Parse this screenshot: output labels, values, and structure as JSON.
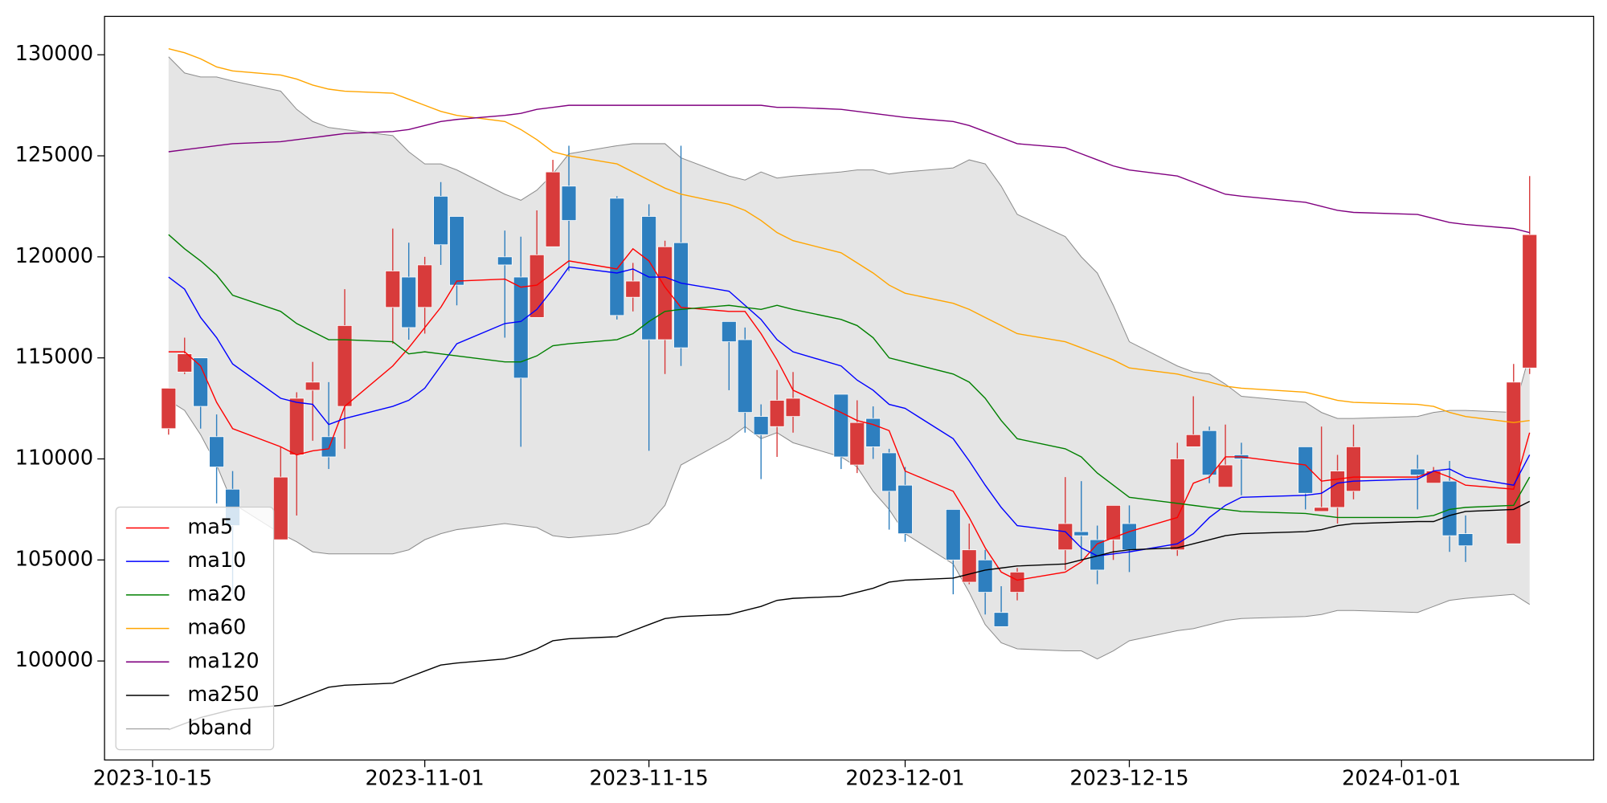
{
  "chart_data": {
    "type": "candlestick",
    "x": [
      "2023-10-16",
      "2023-10-17",
      "2023-10-18",
      "2023-10-19",
      "2023-10-20",
      "2023-10-23",
      "2023-10-24",
      "2023-10-25",
      "2023-10-26",
      "2023-10-27",
      "2023-10-30",
      "2023-10-31",
      "2023-11-01",
      "2023-11-02",
      "2023-11-03",
      "2023-11-06",
      "2023-11-07",
      "2023-11-08",
      "2023-11-09",
      "2023-11-10",
      "2023-11-13",
      "2023-11-14",
      "2023-11-15",
      "2023-11-16",
      "2023-11-17",
      "2023-11-20",
      "2023-11-21",
      "2023-11-22",
      "2023-11-23",
      "2023-11-24",
      "2023-11-27",
      "2023-11-28",
      "2023-11-29",
      "2023-11-30",
      "2023-12-01",
      "2023-12-04",
      "2023-12-05",
      "2023-12-06",
      "2023-12-07",
      "2023-12-08",
      "2023-12-11",
      "2023-12-12",
      "2023-12-13",
      "2023-12-14",
      "2023-12-15",
      "2023-12-18",
      "2023-12-19",
      "2023-12-20",
      "2023-12-21",
      "2023-12-22",
      "2023-12-26",
      "2023-12-27",
      "2023-12-28",
      "2023-12-29",
      "2024-01-02",
      "2024-01-03",
      "2024-01-04",
      "2024-01-05",
      "2024-01-08",
      "2024-01-09"
    ],
    "open": [
      111500,
      114300,
      115000,
      111100,
      108500,
      106000,
      110200,
      113400,
      111100,
      112600,
      117500,
      119000,
      117500,
      123000,
      122000,
      120000,
      119000,
      117000,
      120500,
      123500,
      122900,
      118000,
      122000,
      115900,
      120700,
      116800,
      115900,
      112100,
      111600,
      112100,
      113200,
      109700,
      112000,
      110300,
      108700,
      107500,
      103900,
      105000,
      102400,
      103400,
      105500,
      106400,
      106000,
      106000,
      106800,
      105500,
      110600,
      111400,
      108600,
      110200,
      110600,
      107400,
      107600,
      108400,
      109500,
      108800,
      108900,
      106300,
      105800,
      114500
    ],
    "high": [
      113500,
      116000,
      115000,
      112200,
      109400,
      110600,
      113300,
      114800,
      113800,
      118400,
      121400,
      120700,
      120000,
      123700,
      122000,
      121300,
      121000,
      122300,
      124800,
      125500,
      123000,
      119700,
      122600,
      120800,
      125500,
      116800,
      116500,
      112700,
      114400,
      114300,
      113200,
      112900,
      112600,
      110500,
      109600,
      107500,
      106800,
      105500,
      103700,
      104600,
      109100,
      108900,
      106700,
      107700,
      107700,
      110800,
      113100,
      111600,
      111700,
      110800,
      110600,
      111600,
      110200,
      111700,
      110200,
      109600,
      109900,
      107200,
      114700,
      124000
    ],
    "low": [
      111200,
      114200,
      111500,
      107800,
      103300,
      106000,
      107200,
      110900,
      109500,
      110500,
      115700,
      115900,
      116200,
      119600,
      117600,
      116000,
      110600,
      117000,
      120500,
      119300,
      116900,
      117300,
      110400,
      114200,
      114600,
      113400,
      111300,
      109000,
      110100,
      111300,
      109500,
      109300,
      110000,
      106500,
      105900,
      103300,
      103800,
      102300,
      101700,
      103000,
      104500,
      105000,
      103800,
      105000,
      104400,
      105200,
      110600,
      108800,
      108600,
      108200,
      107500,
      107400,
      106800,
      108000,
      107500,
      108800,
      105400,
      104900,
      105800,
      114200
    ],
    "close": [
      113500,
      115200,
      112600,
      109600,
      106700,
      109100,
      113000,
      113800,
      110100,
      116600,
      119300,
      116500,
      119600,
      120600,
      118600,
      119600,
      114000,
      120100,
      124200,
      121800,
      117100,
      118800,
      115900,
      120500,
      115500,
      115800,
      112300,
      111200,
      112900,
      113000,
      110100,
      111800,
      110600,
      108400,
      106300,
      105000,
      105500,
      103400,
      101700,
      104400,
      106800,
      106200,
      104500,
      107700,
      105500,
      110000,
      111200,
      109200,
      109700,
      110000,
      108300,
      107600,
      109400,
      110600,
      109200,
      109400,
      106200,
      105700,
      113800,
      121100
    ],
    "up_color": "#d83b3b",
    "down_color": "#2e7fbf",
    "series": [
      {
        "name": "ma5",
        "color": "#ff0000",
        "values": [
          115300,
          115300,
          114600,
          112800,
          111500,
          110600,
          110200,
          110400,
          110500,
          112600,
          114600,
          115500,
          116500,
          117500,
          118800,
          118900,
          118500,
          118600,
          119200,
          119800,
          119400,
          120400,
          119800,
          118500,
          117500,
          117300,
          117300,
          116200,
          114900,
          113400,
          112300,
          111900,
          111700,
          111400,
          109400,
          108400,
          107100,
          105600,
          104400,
          104000,
          104400,
          104900,
          105800,
          106100,
          106400,
          107100,
          108800,
          109100,
          110100,
          110100,
          109700,
          108900,
          109000,
          109100,
          109100,
          109400,
          109100,
          108700,
          108500,
          111300
        ]
      },
      {
        "name": "ma10",
        "color": "#0000ff",
        "values": [
          119000,
          118400,
          117000,
          116000,
          114700,
          113000,
          112800,
          112700,
          111700,
          112000,
          112600,
          112900,
          113500,
          114600,
          115700,
          116700,
          116800,
          117400,
          118400,
          119500,
          119200,
          119400,
          119000,
          119000,
          118700,
          118300,
          117600,
          116900,
          115900,
          115300,
          114600,
          113900,
          113400,
          112700,
          112500,
          111000,
          109900,
          108700,
          107600,
          106700,
          106400,
          105600,
          105200,
          105300,
          105400,
          105800,
          106300,
          107100,
          107700,
          108100,
          108200,
          108300,
          108800,
          108900,
          109000,
          109400,
          109500,
          109100,
          108700,
          110200
        ]
      },
      {
        "name": "ma20",
        "color": "#008000",
        "values": [
          121100,
          120400,
          119800,
          119100,
          118100,
          117300,
          116700,
          116300,
          115900,
          115900,
          115800,
          115200,
          115300,
          115200,
          115100,
          114800,
          114800,
          115100,
          115600,
          115700,
          115900,
          116200,
          116800,
          117300,
          117400,
          117600,
          117500,
          117400,
          117600,
          117400,
          116900,
          116600,
          116000,
          115000,
          114800,
          114200,
          113800,
          113000,
          111900,
          111000,
          110500,
          110100,
          109300,
          108700,
          108100,
          107800,
          107700,
          107600,
          107500,
          107400,
          107300,
          107200,
          107100,
          107100,
          107100,
          107200,
          107500,
          107600,
          107700,
          109100
        ]
      },
      {
        "name": "ma60",
        "color": "#ffa500",
        "values": [
          130300,
          130100,
          129800,
          129400,
          129200,
          129000,
          128800,
          128500,
          128300,
          128200,
          128100,
          127800,
          127500,
          127200,
          127000,
          126700,
          126300,
          125800,
          125200,
          125000,
          124600,
          124200,
          123800,
          123400,
          123100,
          122600,
          122300,
          121800,
          121200,
          120800,
          120200,
          119700,
          119200,
          118600,
          118200,
          117700,
          117400,
          117000,
          116600,
          116200,
          115800,
          115500,
          115200,
          114900,
          114500,
          114200,
          114000,
          113800,
          113600,
          113500,
          113300,
          113100,
          112900,
          112800,
          112700,
          112600,
          112300,
          112100,
          111800,
          111900
        ]
      },
      {
        "name": "ma120",
        "color": "#800080",
        "values": [
          125200,
          125300,
          125400,
          125500,
          125600,
          125700,
          125800,
          125900,
          126000,
          126100,
          126200,
          126300,
          126500,
          126700,
          126800,
          127000,
          127100,
          127300,
          127400,
          127500,
          127500,
          127500,
          127500,
          127500,
          127500,
          127500,
          127500,
          127500,
          127400,
          127400,
          127300,
          127200,
          127100,
          127000,
          126900,
          126700,
          126500,
          126200,
          125900,
          125600,
          125400,
          125100,
          124800,
          124500,
          124300,
          124000,
          123700,
          123400,
          123100,
          123000,
          122700,
          122500,
          122300,
          122200,
          122100,
          121900,
          121700,
          121600,
          121400,
          121200
        ]
      },
      {
        "name": "ma250",
        "color": "#000000",
        "values": [
          96600,
          96900,
          97200,
          97400,
          97600,
          97800,
          98100,
          98400,
          98700,
          98800,
          98900,
          99200,
          99500,
          99800,
          99900,
          100100,
          100300,
          100600,
          101000,
          101100,
          101200,
          101500,
          101800,
          102100,
          102200,
          102300,
          102500,
          102700,
          103000,
          103100,
          103200,
          103400,
          103600,
          103900,
          104000,
          104100,
          104300,
          104500,
          104600,
          104700,
          104800,
          105000,
          105200,
          105400,
          105500,
          105600,
          105800,
          106000,
          106200,
          106300,
          106400,
          106500,
          106700,
          106800,
          106900,
          106900,
          107200,
          107400,
          107500,
          107900
        ]
      }
    ],
    "band": {
      "name": "bband",
      "color": "#8c8c8c",
      "fill": "#e5e5e5",
      "upper": [
        129900,
        129100,
        128900,
        128900,
        128700,
        128200,
        127300,
        126700,
        126400,
        126300,
        126000,
        125200,
        124600,
        124600,
        124300,
        123100,
        122800,
        123300,
        124100,
        125100,
        125500,
        125600,
        125600,
        125600,
        124900,
        124000,
        123800,
        124200,
        123900,
        124000,
        124200,
        124300,
        124300,
        124100,
        124200,
        124400,
        124800,
        124600,
        123500,
        122100,
        121000,
        120000,
        119200,
        117600,
        115800,
        114600,
        114300,
        114200,
        113700,
        113100,
        112800,
        112300,
        112000,
        112000,
        112100,
        112300,
        112400,
        112400,
        112300,
        115200
      ],
      "lower": [
        112900,
        112400,
        111200,
        109700,
        107800,
        106300,
        105900,
        105400,
        105300,
        105300,
        105300,
        105500,
        106000,
        106300,
        106500,
        106800,
        106700,
        106600,
        106200,
        106100,
        106300,
        106500,
        106800,
        107700,
        109700,
        111000,
        111600,
        111000,
        111300,
        110800,
        110100,
        109600,
        108400,
        107500,
        106300,
        104800,
        103400,
        101800,
        100900,
        100600,
        100500,
        100500,
        100100,
        100500,
        101000,
        101500,
        101600,
        101800,
        102000,
        102100,
        102200,
        102300,
        102500,
        102500,
        102400,
        102700,
        103000,
        103100,
        103300,
        102800
      ]
    },
    "xlim": [
      "2023-10-12",
      "2024-01-13"
    ],
    "xticks": [
      "2023-10-15",
      "2023-11-01",
      "2023-11-15",
      "2023-12-01",
      "2023-12-15",
      "2024-01-01"
    ],
    "ylim": [
      95100,
      131900
    ],
    "yticks": [
      100000,
      105000,
      110000,
      115000,
      120000,
      125000,
      130000
    ],
    "grid": false,
    "legend": "lower left"
  }
}
